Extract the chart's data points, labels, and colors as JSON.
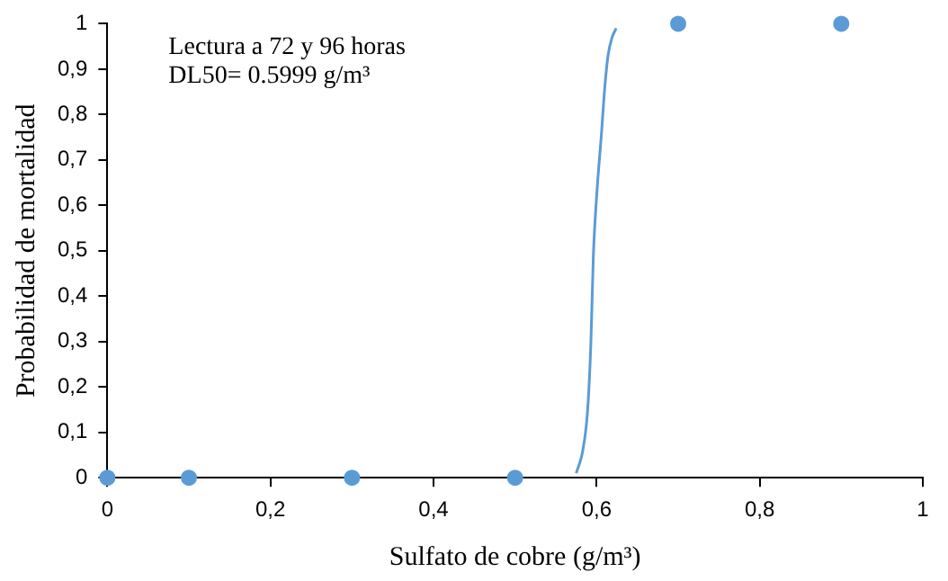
{
  "chart_data": {
    "type": "scatter",
    "xlabel": "Sulfato de cobre (g/m³)",
    "ylabel": "Probabilidad de mortalidad",
    "annotations": [
      "Lectura a 72 y 96 horas",
      "DL50= 0.5999 g/m³"
    ],
    "series": [
      {
        "color": "#5b9bd5",
        "marker": "circle",
        "x": [
          0,
          0.1,
          0.3,
          0.5,
          0.7,
          0.9
        ],
        "values": [
          0,
          0,
          0,
          0,
          1,
          1
        ]
      },
      {
        "type": "line",
        "color": "#5b9bd5",
        "marker": "none",
        "x": [
          0.575,
          0.583,
          0.589,
          0.593,
          0.596,
          0.6,
          0.606,
          0.61,
          0.614,
          0.619,
          0.624
        ],
        "values": [
          0.01,
          0.06,
          0.15,
          0.3,
          0.49,
          0.62,
          0.76,
          0.86,
          0.93,
          0.97,
          0.99
        ]
      }
    ],
    "xlim": [
      0,
      1
    ],
    "xticks": [
      0,
      {
        "value": 0.2,
        "label": "0,2"
      },
      {
        "value": 0.4,
        "label": "0,4"
      },
      {
        "value": 0.6,
        "label": "0,6"
      },
      {
        "value": 0.8,
        "label": "0,8"
      },
      1
    ],
    "ylim": [
      0,
      1
    ],
    "yticks": [
      0,
      {
        "value": 0.1,
        "label": "0,1"
      },
      {
        "value": 0.2,
        "label": "0,2"
      },
      {
        "value": 0.3,
        "label": "0,3"
      },
      {
        "value": 0.4,
        "label": "0,4"
      },
      {
        "value": 0.5,
        "label": "0,5"
      },
      {
        "value": 0.6,
        "label": "0,6"
      },
      {
        "value": 0.7,
        "label": "0,7"
      },
      {
        "value": 0.8,
        "label": "0,8"
      },
      {
        "value": 0.9,
        "label": "0,9"
      },
      1
    ],
    "grid": false,
    "legend": false
  }
}
